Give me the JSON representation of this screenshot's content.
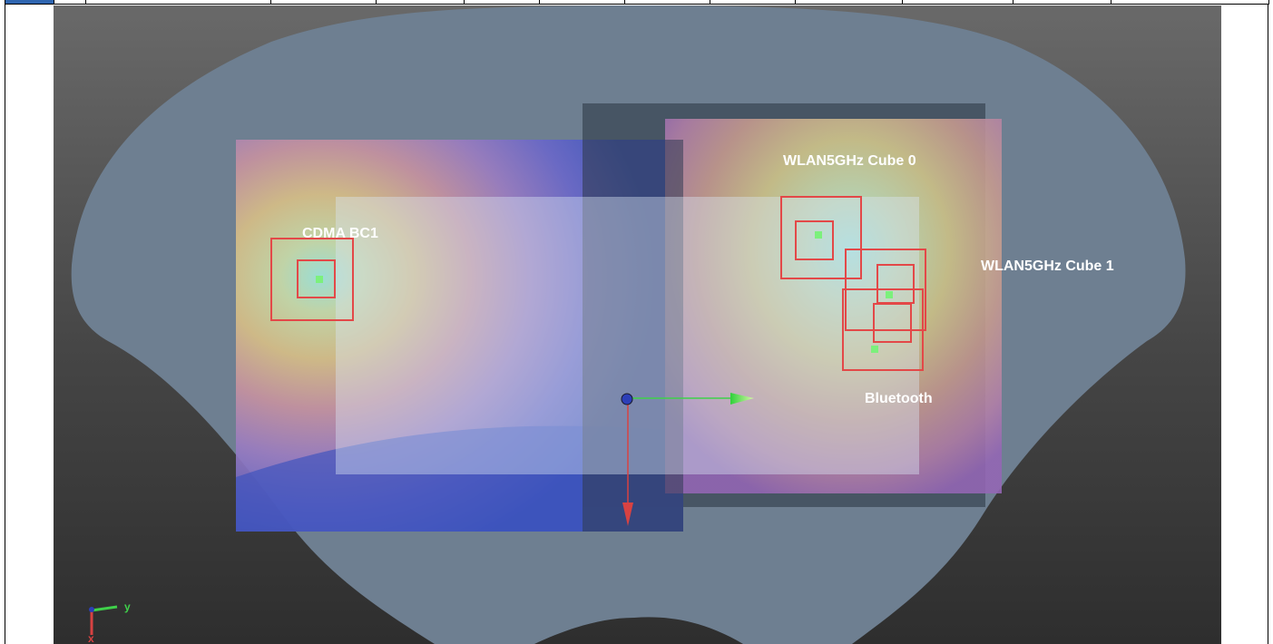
{
  "viewport": {
    "labels": {
      "cdma": "CDMA BC1",
      "wlan_cube0": "WLAN5GHz Cube 0",
      "wlan_cube1": "WLAN5GHz Cube 1",
      "bluetooth": "Bluetooth"
    },
    "orientation_triad": {
      "y_label": "y",
      "x_label": "x"
    }
  },
  "colors": {
    "phantom": "#6e7f91",
    "marker_box": "#e34848",
    "marker_dot": "#7cf07c",
    "axis_green": "#3fd14a",
    "axis_red": "#d84242",
    "axis_blue": "#2c3fb8"
  },
  "icons": [
    "orientation-triad-icon",
    "translate-gizmo-icon"
  ]
}
